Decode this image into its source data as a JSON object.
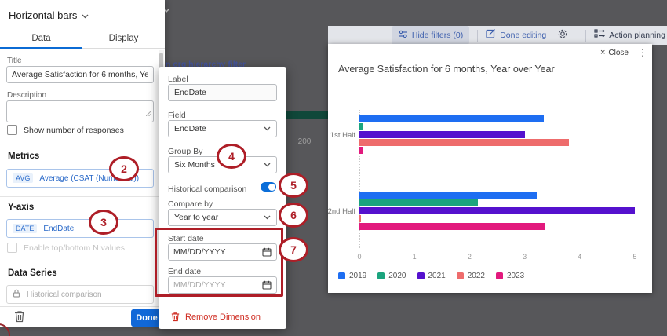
{
  "background": {
    "band_value": "200",
    "link_text": "n org hierarchy filter"
  },
  "toolbar": {
    "hide_filters": "Hide filters (0)",
    "done_editing": "Done editing",
    "action_planning": "Action planning"
  },
  "card": {
    "close_x": "×",
    "close_label": "Close",
    "kebab": "⋮",
    "title": "Average Satisfaction for 6 months, Year over Year"
  },
  "chart_data": {
    "type": "bar",
    "orientation": "horizontal",
    "title": "Average Satisfaction for 6 months, Year over Year",
    "categories": [
      "1st Half",
      "2nd Half"
    ],
    "series": [
      {
        "name": "2019",
        "color": "#1e6ef2",
        "values": [
          3.35,
          3.22
        ]
      },
      {
        "name": "2020",
        "color": "#1ba47e",
        "values": [
          0.06,
          2.15
        ]
      },
      {
        "name": "2021",
        "color": "#5511ce",
        "values": [
          3.0,
          5.0
        ]
      },
      {
        "name": "2022",
        "color": "#ee6c6c",
        "values": [
          3.8,
          0.03
        ]
      },
      {
        "name": "2023",
        "color": "#e2197d",
        "values": [
          0.06,
          3.37
        ]
      }
    ],
    "xlim": [
      0,
      5
    ],
    "xticks": [
      0,
      1,
      2,
      3,
      4,
      5
    ],
    "xlabel": "",
    "ylabel": "",
    "legend_position": "bottom",
    "grid": false
  },
  "panel": {
    "chart_type": "Horizontal bars",
    "tabs": {
      "data": "Data",
      "display": "Display"
    },
    "title_label": "Title",
    "title_value": "Average Satisfaction for 6 months, Year over Year",
    "description_label": "Description",
    "show_responses_label": "Show number of responses",
    "metrics": {
      "heading": "Metrics",
      "chip_tag": "AVG",
      "chip_label": "Average (CSAT (Numerical))"
    },
    "yaxis": {
      "heading": "Y-axis",
      "chip_tag": "DATE",
      "chip_label": "EndDate",
      "enable_label": "Enable top/bottom N values"
    },
    "data_series": {
      "heading": "Data Series",
      "placeholder": "Historical comparison"
    },
    "done_label": "Done"
  },
  "popup": {
    "label_label": "Label",
    "label_value": "EndDate",
    "field_label": "Field",
    "field_value": "EndDate",
    "group_by_label": "Group By",
    "group_by_value": "Six Months",
    "historical_label": "Historical comparison",
    "compare_by_label": "Compare by",
    "compare_by_value": "Year to year",
    "start_date_label": "Start date",
    "start_date_value": "MM/DD/YYYY",
    "end_date_label": "End date",
    "end_date_placeholder": "MM/DD/YYYY",
    "remove_label": "Remove Dimension"
  },
  "annotations": {
    "n2": "2",
    "n3": "3",
    "n4": "4",
    "n5": "5",
    "n6": "6",
    "n7": "7"
  },
  "colors": {
    "accent_blue": "#1168d8",
    "annotation_red": "#ae1e27",
    "remove_red": "#cf2b20",
    "overlay_gray": "#57575a",
    "band_green": "#10483a"
  }
}
